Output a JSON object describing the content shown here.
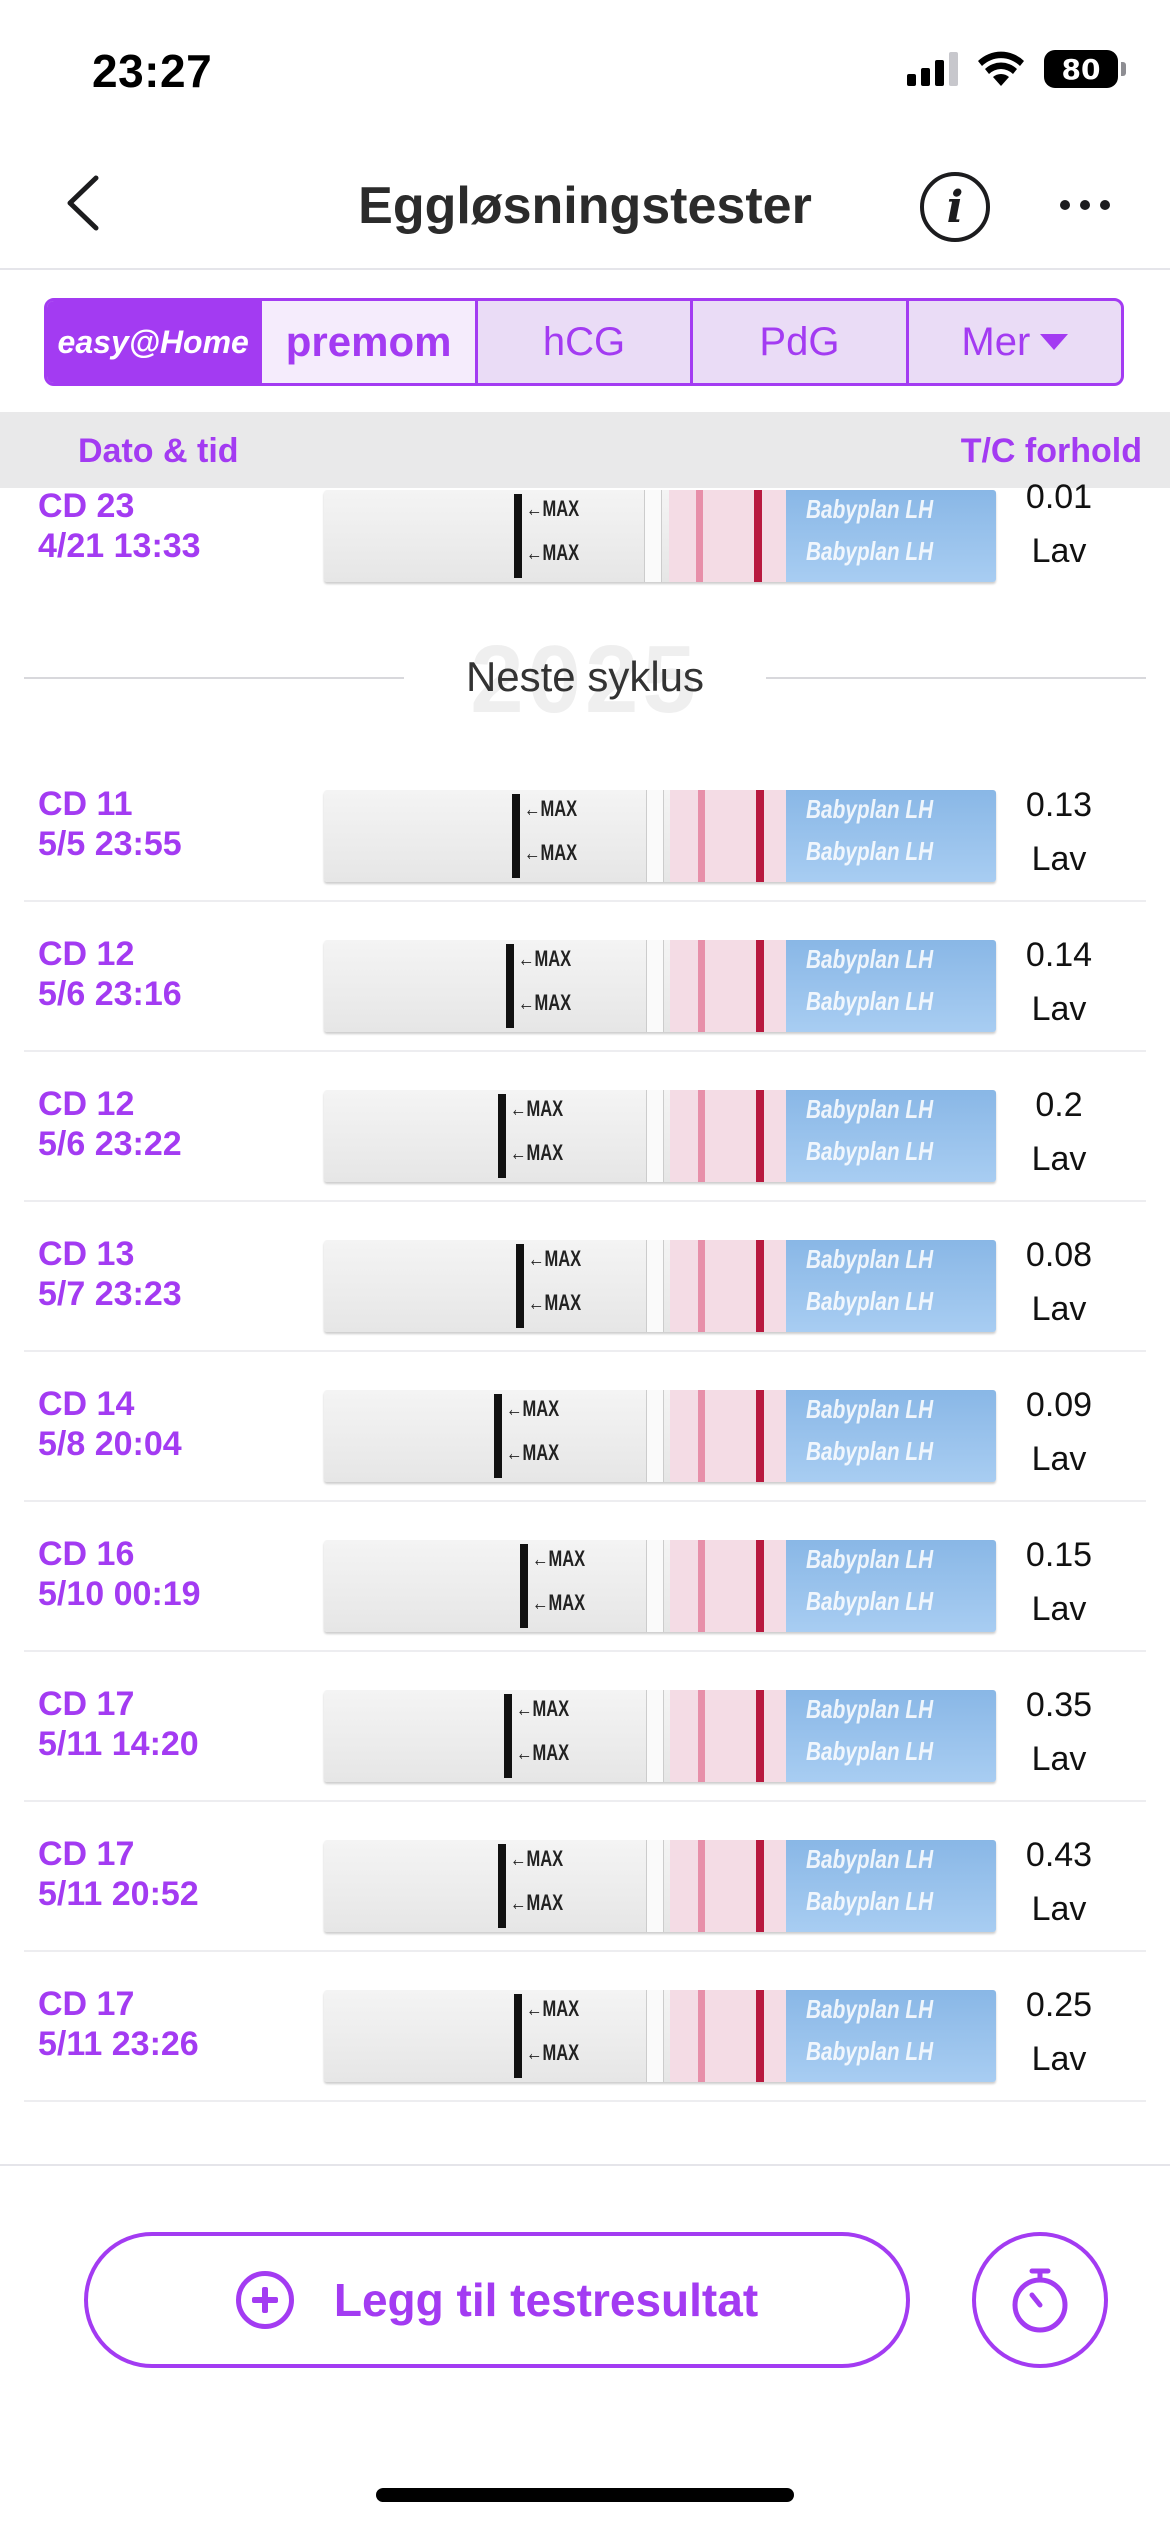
{
  "status_bar": {
    "time": "23:27",
    "battery": "80"
  },
  "nav": {
    "title": "Eggløsningstester"
  },
  "tabs": [
    {
      "label": "easy@Home"
    },
    {
      "label": "premom"
    },
    {
      "label": "hCG"
    },
    {
      "label": "PdG"
    },
    {
      "label": "Mer"
    }
  ],
  "columns": {
    "date": "Dato & tid",
    "ratio": "T/C forhold"
  },
  "strip_text": {
    "max": "←MAX",
    "brand": "Babyplan LH"
  },
  "top_row": {
    "cd": "CD 23",
    "datetime": "4/21 13:33",
    "ratio": "0.01",
    "level": "Lav"
  },
  "divider": {
    "label": "Neste syklus",
    "watermark": "2025"
  },
  "rows": [
    {
      "cd": "CD 11",
      "datetime": "5/5 23:55",
      "ratio": "0.13",
      "level": "Lav"
    },
    {
      "cd": "CD 12",
      "datetime": "5/6 23:16",
      "ratio": "0.14",
      "level": "Lav"
    },
    {
      "cd": "CD 12",
      "datetime": "5/6 23:22",
      "ratio": "0.2",
      "level": "Lav"
    },
    {
      "cd": "CD 13",
      "datetime": "5/7 23:23",
      "ratio": "0.08",
      "level": "Lav"
    },
    {
      "cd": "CD 14",
      "datetime": "5/8 20:04",
      "ratio": "0.09",
      "level": "Lav"
    },
    {
      "cd": "CD 16",
      "datetime": "5/10 00:19",
      "ratio": "0.15",
      "level": "Lav"
    },
    {
      "cd": "CD 17",
      "datetime": "5/11 14:20",
      "ratio": "0.35",
      "level": "Lav"
    },
    {
      "cd": "CD 17",
      "datetime": "5/11 20:52",
      "ratio": "0.43",
      "level": "Lav"
    },
    {
      "cd": "CD 17",
      "datetime": "5/11 23:26",
      "ratio": "0.25",
      "level": "Lav"
    }
  ],
  "actions": {
    "add_label": "Legg til testresultat"
  },
  "icons": {
    "back": "chevron-left-icon",
    "info": "info-icon",
    "more": "more-icon",
    "add": "plus-circle-icon",
    "timer": "timer-icon"
  },
  "colors": {
    "accent": "#a33bf2",
    "test_line": "#b8193f",
    "strip_blue": "#89b7e6"
  }
}
